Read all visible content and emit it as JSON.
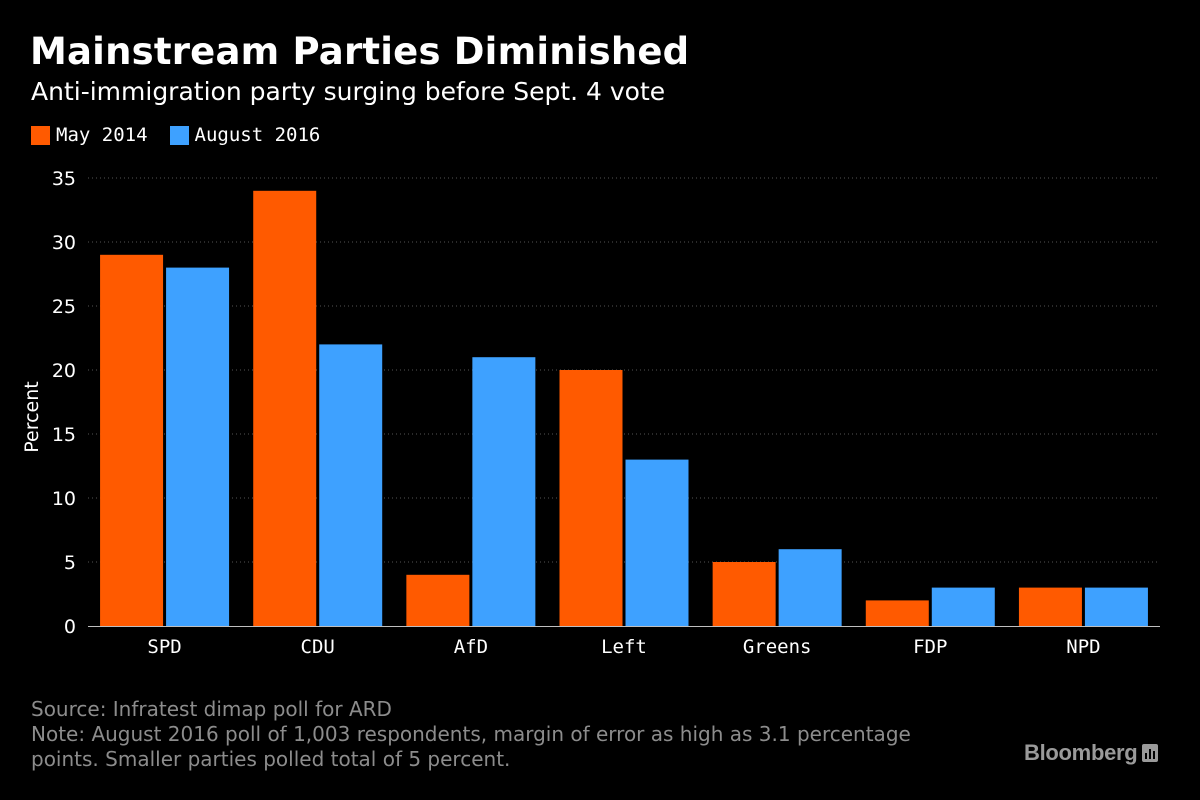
{
  "colors": {
    "may_2014": "#ff5a00",
    "aug_2016": "#3ea1ff",
    "background": "#000000",
    "grid": "#555555",
    "muted_text": "#8c8c8c"
  },
  "chart_data": {
    "type": "bar",
    "title": "Mainstream Parties Diminished",
    "subtitle": "Anti-immigration party surging before Sept. 4 vote",
    "ylabel": "Percent",
    "xlabel": "",
    "ylim": [
      0,
      35
    ],
    "yticks": [
      0,
      5,
      10,
      15,
      20,
      25,
      30,
      35
    ],
    "grid": true,
    "legend_position": "top-left",
    "categories": [
      "SPD",
      "CDU",
      "AfD",
      "Left",
      "Greens",
      "FDP",
      "NPD"
    ],
    "series": [
      {
        "name": "May 2014",
        "color": "#ff5a00",
        "values": [
          29,
          34,
          4,
          20,
          5,
          2,
          3
        ]
      },
      {
        "name": "August 2016",
        "color": "#3ea1ff",
        "values": [
          28,
          22,
          21,
          13,
          6,
          3,
          3
        ]
      }
    ]
  },
  "footer": {
    "source": "Source: Infratest dimap poll for ARD",
    "note_line1": "Note: August 2016 poll of 1,003 respondents, margin of error as high as 3.1 percentage",
    "note_line2": "points. Smaller parties polled total of 5 percent."
  },
  "brand": {
    "name": "Bloomberg",
    "icon": "bloomberg-chart-icon"
  }
}
